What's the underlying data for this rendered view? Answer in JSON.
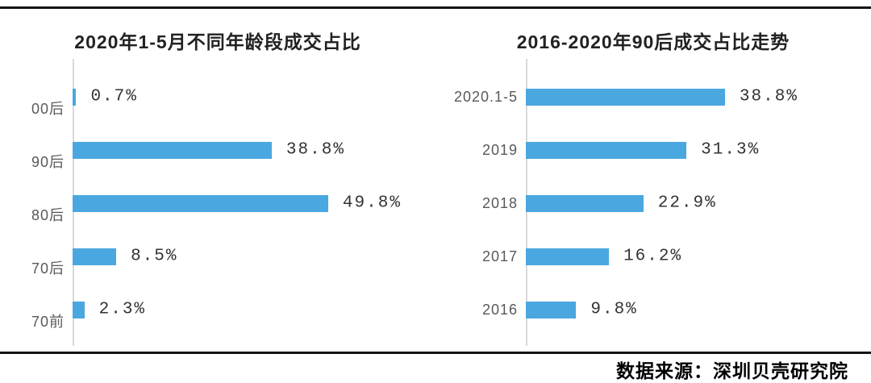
{
  "meta": {
    "source_label": "数据来源：深圳贝壳研究院"
  },
  "colors": {
    "bar": "#4BA7DF",
    "axis": "#D9D9D9",
    "rule": "#141414",
    "category_label": "#595959",
    "value_label": "#333333",
    "title": "#222222"
  },
  "chart_data": [
    {
      "type": "bar",
      "orientation": "horizontal",
      "title": "2020年1-5月不同年龄段成交占比",
      "categories": [
        "00后",
        "90后",
        "80后",
        "70后",
        "70前"
      ],
      "values": [
        0.7,
        38.8,
        49.8,
        8.5,
        2.3
      ],
      "value_labels": [
        "0.7%",
        "38.8%",
        "49.8%",
        "8.5%",
        "2.3%"
      ],
      "unit": "%",
      "xlim": [
        0,
        55
      ],
      "grid": false,
      "legend": null
    },
    {
      "type": "bar",
      "orientation": "horizontal",
      "title": "2016-2020年90后成交占比走势",
      "categories": [
        "2020.1-5",
        "2019",
        "2018",
        "2017",
        "2016"
      ],
      "values": [
        38.8,
        31.3,
        22.9,
        16.2,
        9.8
      ],
      "value_labels": [
        "38.8%",
        "31.3%",
        "22.9%",
        "16.2%",
        "9.8%"
      ],
      "unit": "%",
      "xlim": [
        0,
        55
      ],
      "grid": false,
      "legend": null
    }
  ]
}
